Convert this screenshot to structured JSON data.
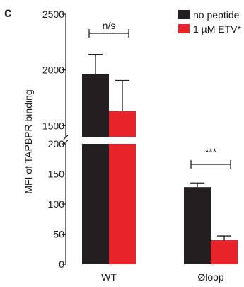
{
  "chart_data": {
    "type": "bar",
    "panel_label": "c",
    "categories": [
      "WT",
      "Øloop"
    ],
    "ylabel": "MFI of TAPBPR binding",
    "axis_break": {
      "lower_range": [
        0,
        200
      ],
      "upper_range": [
        1400,
        2500
      ]
    },
    "lower_ticks": [
      "0",
      "50",
      "100",
      "150",
      "200"
    ],
    "upper_ticks": [
      "1500",
      "2000",
      "2500"
    ],
    "series": [
      {
        "name": "no peptide",
        "color": "#231f20",
        "values": [
          1965,
          128
        ],
        "errors": [
          175,
          7
        ]
      },
      {
        "name": "1 µM ETV*",
        "color": "#e8232a",
        "values": [
          1630,
          40
        ],
        "errors": [
          275,
          7
        ]
      }
    ],
    "annotations": [
      {
        "label": "n/s",
        "category": 0
      },
      {
        "label": "***",
        "category": 1
      }
    ],
    "legend_position": "top-right",
    "grid": false
  }
}
